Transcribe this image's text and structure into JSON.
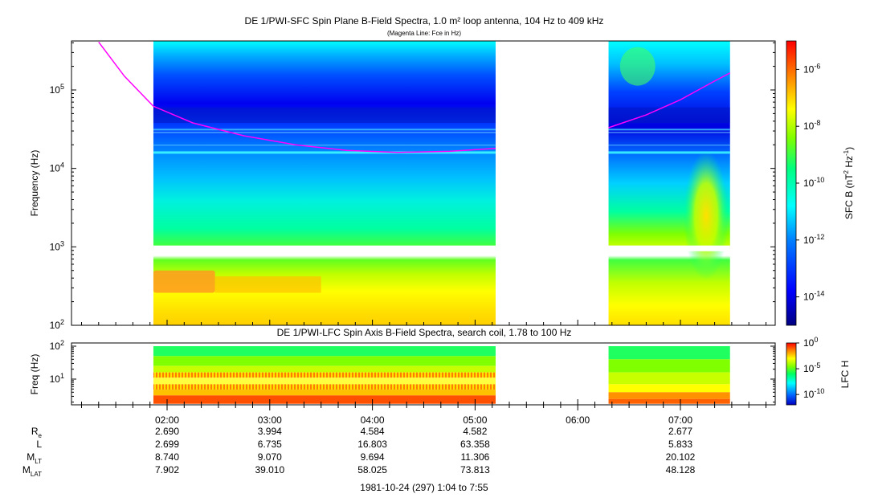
{
  "colors": {
    "fce_line": "#ff00ff",
    "spectrum_scale": [
      "#000080",
      "#0000ff",
      "#0080ff",
      "#00ffff",
      "#00ff80",
      "#80ff00",
      "#ffff00",
      "#ff8000",
      "#ff0000"
    ]
  },
  "top_panel": {
    "title": "DE 1/PWI-SFC  Spin Plane B-Field Spectra, 1.0 m² loop antenna, 104 Hz to 409 kHz",
    "subtitle": "(Magenta Line: Fce in Hz)",
    "ylabel": "Frequency (Hz)",
    "y_ticks": [
      {
        "mant": "10",
        "exp": "2"
      },
      {
        "mant": "10",
        "exp": "3"
      },
      {
        "mant": "10",
        "exp": "4"
      },
      {
        "mant": "10",
        "exp": "5"
      }
    ],
    "colorbar": {
      "label_main": "SFC B (nT",
      "label_sup1": "2",
      "label_mid": " Hz",
      "label_sup2": "-1",
      "label_end": ")",
      "ticks": [
        {
          "mant": "10",
          "exp": "-6"
        },
        {
          "mant": "10",
          "exp": "-8"
        },
        {
          "mant": "10",
          "exp": "-10"
        },
        {
          "mant": "10",
          "exp": "-12"
        },
        {
          "mant": "10",
          "exp": "-14"
        }
      ]
    }
  },
  "bottom_panel": {
    "title": "DE 1/PWI-LFC  Spin Axis B-Field Spectra, search coil, 1.78 to 100 Hz",
    "ylabel": "Freq (Hz)",
    "y_ticks": [
      {
        "mant": "10",
        "exp": "1"
      },
      {
        "mant": "10",
        "exp": "2"
      }
    ],
    "colorbar": {
      "label": "LFC H",
      "ticks": [
        {
          "mant": "10",
          "exp": "0"
        },
        {
          "mant": "10",
          "exp": "-5"
        },
        {
          "mant": "10",
          "exp": "-10"
        }
      ]
    }
  },
  "ephemeris": {
    "labels": [
      {
        "main": "R",
        "sub": "e"
      },
      {
        "main": "L",
        "sub": ""
      },
      {
        "main": "M",
        "sub": "LT"
      },
      {
        "main": "M",
        "sub": "LAT"
      }
    ],
    "columns": [
      {
        "time": "02:00",
        "values": [
          "2.690",
          "2.699",
          "8.740",
          "7.902"
        ]
      },
      {
        "time": "03:00",
        "values": [
          "3.994",
          "6.735",
          "9.070",
          "39.010"
        ]
      },
      {
        "time": "04:00",
        "values": [
          "4.584",
          "16.803",
          "9.694",
          "58.025"
        ]
      },
      {
        "time": "05:00",
        "values": [
          "4.582",
          "63.358",
          "11.306",
          "73.813"
        ]
      },
      {
        "time": "06:00",
        "values": [
          "",
          "",
          "",
          ""
        ]
      },
      {
        "time": "07:00",
        "values": [
          "2.677",
          "5.833",
          "20.102",
          "48.128"
        ]
      }
    ],
    "footer": "1981-10-24 (297) 1:04 to 7:55"
  },
  "chart_data": [
    {
      "type": "heatmap",
      "title": "DE 1/PWI-SFC  Spin Plane B-Field Spectra, 1.0 m² loop antenna, 104 Hz to 409 kHz",
      "subtitle": "(Magenta Line: Fce in Hz)",
      "ylabel": "Frequency (Hz)",
      "y_scale": "log",
      "ylim": [
        100,
        409000
      ],
      "x_ticks": [
        "02:00",
        "03:00",
        "04:00",
        "05:00",
        "06:00",
        "07:00"
      ],
      "x_range": [
        "01:04",
        "07:55"
      ],
      "data_intervals": [
        [
          "01:52",
          "05:12"
        ],
        [
          "06:18",
          "07:29"
        ]
      ],
      "colorbar": {
        "label": "SFC B (nT^2 Hz^-1)",
        "scale": "log",
        "range": [
          1e-15,
          1e-05
        ]
      },
      "fce_line": {
        "times": [
          "01:20",
          "01:35",
          "01:52",
          "02:15",
          "02:45",
          "03:15",
          "03:45",
          "04:15",
          "04:45",
          "05:12",
          "06:18",
          "06:40",
          "07:00",
          "07:20",
          "07:29"
        ],
        "values": [
          409000,
          150000,
          62000,
          38000,
          26000,
          20000,
          17000,
          16000,
          16500,
          18000,
          33000,
          48000,
          75000,
          130000,
          165000
        ]
      }
    },
    {
      "type": "heatmap",
      "title": "DE 1/PWI-LFC  Spin Axis B-Field Spectra, search coil, 1.78 to 100 Hz",
      "ylabel": "Freq (Hz)",
      "y_scale": "log",
      "ylim": [
        1.78,
        100
      ],
      "x_ticks": [
        "02:00",
        "03:00",
        "04:00",
        "05:00",
        "06:00",
        "07:00"
      ],
      "data_intervals": [
        [
          "01:52",
          "05:12"
        ],
        [
          "06:18",
          "07:29"
        ]
      ],
      "colorbar": {
        "label": "LFC H",
        "scale": "log",
        "range": [
          1e-12,
          1
        ]
      }
    }
  ]
}
